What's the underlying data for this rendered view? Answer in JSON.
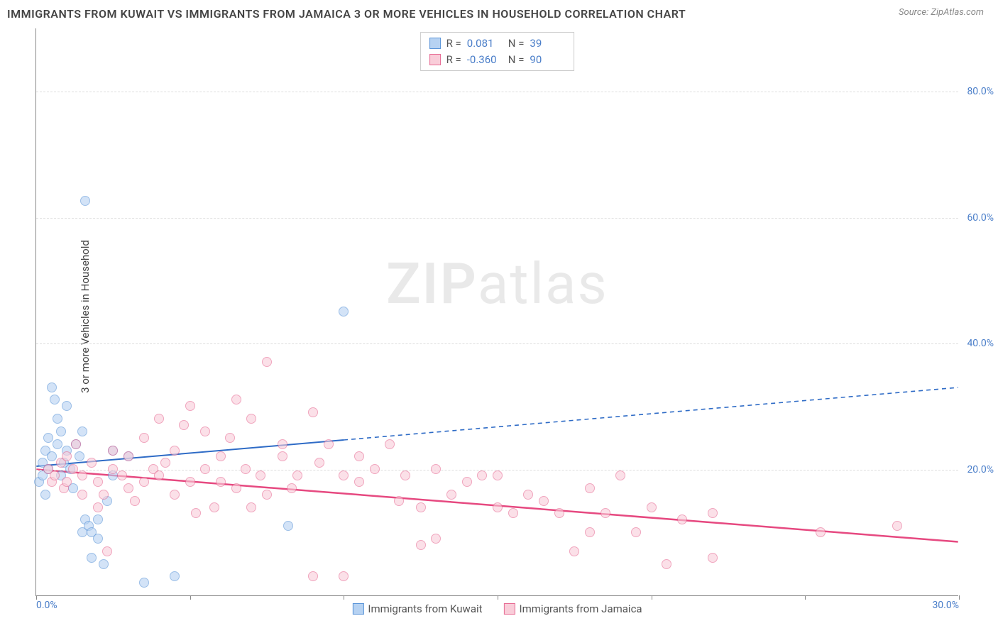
{
  "title": "IMMIGRANTS FROM KUWAIT VS IMMIGRANTS FROM JAMAICA 3 OR MORE VEHICLES IN HOUSEHOLD CORRELATION CHART",
  "source": "Source: ZipAtlas.com",
  "ylabel": "3 or more Vehicles in Household",
  "watermark_zip": "ZIP",
  "watermark_atlas": "atlas",
  "chart": {
    "type": "scatter",
    "xlim": [
      0,
      30
    ],
    "ylim": [
      0,
      90
    ],
    "yticks": [
      20,
      40,
      60,
      80
    ],
    "ytick_labels": [
      "20.0%",
      "40.0%",
      "60.0%",
      "80.0%"
    ],
    "xticks": [
      0,
      5,
      10,
      15,
      20,
      25,
      30
    ],
    "xtick_labels_shown": {
      "0": "0.0%",
      "30": "30.0%"
    },
    "background_color": "#ffffff",
    "grid_color": "#dddddd",
    "axis_color": "#888888",
    "point_radius": 7,
    "series": [
      {
        "name": "Immigrants from Kuwait",
        "label": "Immigrants from Kuwait",
        "color_fill": "#b6d2f2",
        "color_stroke": "#5a94d8",
        "R": "0.081",
        "N": "39",
        "trend": {
          "x1": 0,
          "y1": 20.5,
          "x2": 30,
          "y2": 33,
          "solid_until_x": 10,
          "color": "#2e6bc6",
          "width": 2
        },
        "points": [
          [
            0.1,
            18
          ],
          [
            0.2,
            21
          ],
          [
            0.2,
            19
          ],
          [
            0.3,
            23
          ],
          [
            0.3,
            16
          ],
          [
            0.4,
            20
          ],
          [
            0.4,
            25
          ],
          [
            0.5,
            22
          ],
          [
            0.5,
            33
          ],
          [
            0.6,
            31
          ],
          [
            0.7,
            24
          ],
          [
            0.7,
            28
          ],
          [
            0.8,
            26
          ],
          [
            0.8,
            19
          ],
          [
            0.9,
            21
          ],
          [
            1.0,
            23
          ],
          [
            1.0,
            30
          ],
          [
            1.1,
            20
          ],
          [
            1.2,
            17
          ],
          [
            1.3,
            24
          ],
          [
            1.4,
            22
          ],
          [
            1.5,
            26
          ],
          [
            1.5,
            10
          ],
          [
            1.6,
            12
          ],
          [
            1.7,
            11
          ],
          [
            1.8,
            10
          ],
          [
            1.8,
            6
          ],
          [
            2.0,
            9
          ],
          [
            2.0,
            12
          ],
          [
            2.2,
            5
          ],
          [
            2.3,
            15
          ],
          [
            2.5,
            19
          ],
          [
            2.5,
            23
          ],
          [
            3.0,
            22
          ],
          [
            3.5,
            2
          ],
          [
            4.5,
            3
          ],
          [
            1.6,
            62.5
          ],
          [
            8.2,
            11
          ],
          [
            10.0,
            45
          ]
        ]
      },
      {
        "name": "Immigrants from Jamaica",
        "label": "Immigrants from Jamaica",
        "color_fill": "#f9cdd9",
        "color_stroke": "#e76a93",
        "R": "-0.360",
        "N": "90",
        "trend": {
          "x1": 0,
          "y1": 20,
          "x2": 30,
          "y2": 8.5,
          "solid_until_x": 30,
          "color": "#e64980",
          "width": 2.5
        },
        "points": [
          [
            0.4,
            20
          ],
          [
            0.5,
            18
          ],
          [
            0.6,
            19
          ],
          [
            0.8,
            21
          ],
          [
            0.9,
            17
          ],
          [
            1.0,
            22
          ],
          [
            1.0,
            18
          ],
          [
            1.2,
            20
          ],
          [
            1.3,
            24
          ],
          [
            1.5,
            19
          ],
          [
            1.5,
            16
          ],
          [
            1.8,
            21
          ],
          [
            2.0,
            14
          ],
          [
            2.0,
            18
          ],
          [
            2.2,
            16
          ],
          [
            2.3,
            7
          ],
          [
            2.5,
            20
          ],
          [
            2.5,
            23
          ],
          [
            2.8,
            19
          ],
          [
            3.0,
            17
          ],
          [
            3.0,
            22
          ],
          [
            3.2,
            15
          ],
          [
            3.5,
            18
          ],
          [
            3.5,
            25
          ],
          [
            3.8,
            20
          ],
          [
            4.0,
            28
          ],
          [
            4.0,
            19
          ],
          [
            4.2,
            21
          ],
          [
            4.5,
            16
          ],
          [
            4.5,
            23
          ],
          [
            4.8,
            27
          ],
          [
            5.0,
            30
          ],
          [
            5.0,
            18
          ],
          [
            5.2,
            13
          ],
          [
            5.5,
            20
          ],
          [
            5.5,
            26
          ],
          [
            5.8,
            14
          ],
          [
            6.0,
            22
          ],
          [
            6.0,
            18
          ],
          [
            6.3,
            25
          ],
          [
            6.5,
            31
          ],
          [
            6.5,
            17
          ],
          [
            6.8,
            20
          ],
          [
            7.0,
            28
          ],
          [
            7.0,
            14
          ],
          [
            7.3,
            19
          ],
          [
            7.5,
            37
          ],
          [
            7.5,
            16
          ],
          [
            8.0,
            22
          ],
          [
            8.0,
            24
          ],
          [
            8.3,
            17
          ],
          [
            8.5,
            19
          ],
          [
            9.0,
            29
          ],
          [
            9.0,
            3
          ],
          [
            9.2,
            21
          ],
          [
            9.5,
            24
          ],
          [
            10.0,
            19
          ],
          [
            10.0,
            3
          ],
          [
            10.5,
            18
          ],
          [
            10.5,
            22
          ],
          [
            11.0,
            20
          ],
          [
            11.5,
            24
          ],
          [
            11.8,
            15
          ],
          [
            12.0,
            19
          ],
          [
            12.5,
            8
          ],
          [
            12.5,
            14
          ],
          [
            13.0,
            20
          ],
          [
            13.0,
            9
          ],
          [
            13.5,
            16
          ],
          [
            14.0,
            18
          ],
          [
            14.5,
            19
          ],
          [
            15.0,
            14
          ],
          [
            15.0,
            19
          ],
          [
            15.5,
            13
          ],
          [
            16.0,
            16
          ],
          [
            16.5,
            15
          ],
          [
            17.0,
            13
          ],
          [
            17.5,
            7
          ],
          [
            18.0,
            17
          ],
          [
            18.0,
            10
          ],
          [
            18.5,
            13
          ],
          [
            19.0,
            19
          ],
          [
            19.5,
            10
          ],
          [
            20.0,
            14
          ],
          [
            20.5,
            5
          ],
          [
            21.0,
            12
          ],
          [
            22.0,
            13
          ],
          [
            22.0,
            6
          ],
          [
            25.5,
            10
          ],
          [
            28.0,
            11
          ]
        ]
      }
    ]
  },
  "legend_top": {
    "r_label": "R =",
    "n_label": "N ="
  }
}
